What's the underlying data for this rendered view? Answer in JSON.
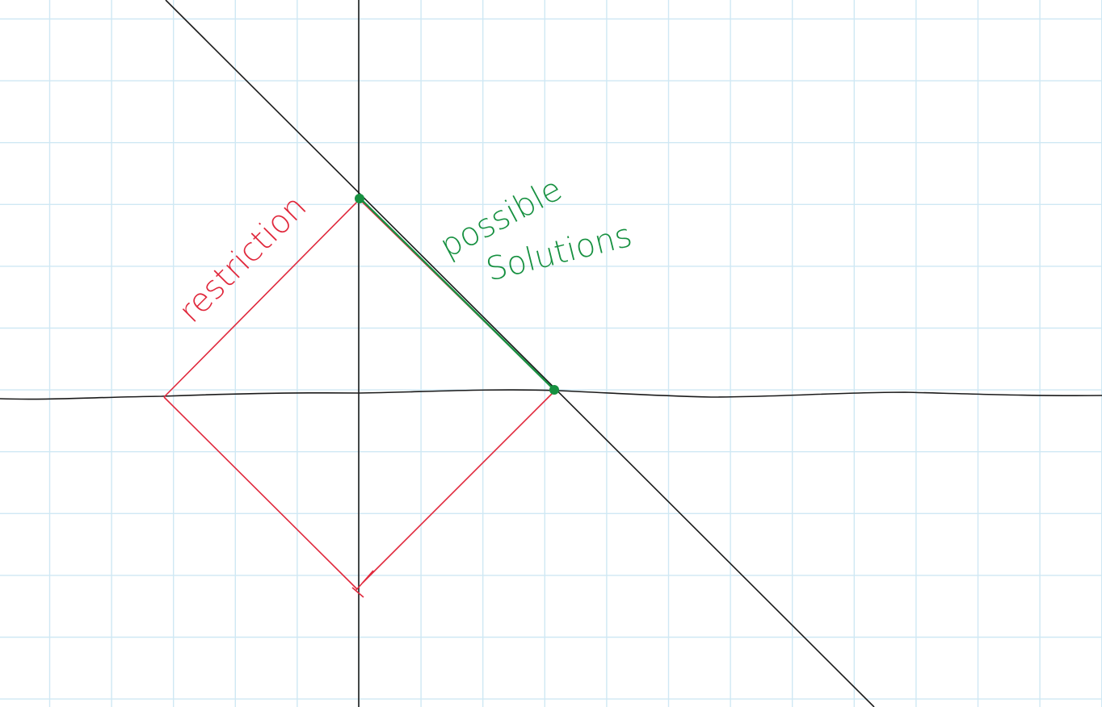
{
  "colors": {
    "background": "#ffffff",
    "grid": "#cfe8f4",
    "axes": "#1a1a1a",
    "restriction": "#e0283c",
    "solutions": "#169040"
  },
  "annotations": {
    "restriction_label": "restriction",
    "solutions_label_line1": "possible",
    "solutions_label_line2": "Solutions"
  }
}
